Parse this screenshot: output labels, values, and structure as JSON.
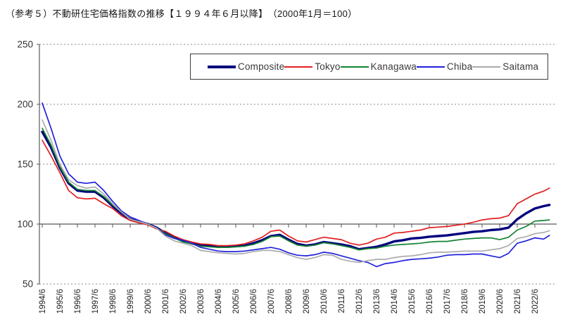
{
  "title": "（参考５）不動研住宅価格指数の推移【１９９４年６月以降】　（2000年1月＝100）",
  "chart_data": {
    "type": "line",
    "title": "不動研住宅価格指数の推移（1994年6月以降、2000年1月＝100）",
    "xlabel": "",
    "ylabel": "",
    "ylim": [
      50,
      250
    ],
    "y_ticks": [
      50,
      100,
      150,
      200,
      250
    ],
    "baseline_value": 100,
    "grid": "horizontal-dashed",
    "legend_position": "top-inside",
    "x_tick_labels": [
      "1994/6",
      "1995/6",
      "1996/6",
      "1997/6",
      "1998/6",
      "1999/6",
      "2000/6",
      "2001/6",
      "2002/6",
      "2003/6",
      "2004/6",
      "2005/6",
      "2006/6",
      "2007/6",
      "2008/6",
      "2009/6",
      "2010/6",
      "2011/6",
      "2012/6",
      "2013/6",
      "2014/6",
      "2015/6",
      "2016/6",
      "2017/6",
      "2018/6",
      "2019/6",
      "2020/6",
      "2021/6",
      "2022/6"
    ],
    "x": [
      1994.5,
      1995,
      1995.5,
      1996,
      1996.5,
      1997,
      1997.5,
      1998,
      1998.5,
      1999,
      1999.5,
      2000,
      2000.5,
      2001,
      2001.5,
      2002,
      2002.5,
      2003,
      2003.5,
      2004,
      2004.5,
      2005,
      2005.5,
      2006,
      2006.5,
      2007,
      2007.5,
      2008,
      2008.5,
      2009,
      2009.5,
      2010,
      2010.5,
      2011,
      2011.5,
      2012,
      2012.5,
      2013,
      2013.5,
      2014,
      2014.5,
      2015,
      2015.5,
      2016,
      2016.5,
      2017,
      2017.5,
      2018,
      2018.5,
      2019,
      2019.5,
      2020,
      2020.5,
      2021,
      2021.5,
      2022,
      2022.5,
      2023,
      2023.33
    ],
    "series": [
      {
        "name": "Composite",
        "color": "#00007E",
        "width": 3.4,
        "values": [
          177,
          164,
          147,
          134,
          128,
          127,
          127,
          122,
          115,
          109,
          104,
          102,
          100,
          97,
          92.5,
          89,
          86,
          84,
          82.5,
          82,
          81,
          81,
          81.5,
          82,
          84,
          86.5,
          90,
          91,
          87,
          83.5,
          82,
          83,
          85,
          84,
          83,
          81.5,
          79,
          80,
          81,
          83,
          85.5,
          86.5,
          88,
          88.5,
          89.5,
          90,
          90.5,
          91.5,
          92.5,
          93.5,
          94,
          95,
          95.5,
          97,
          104,
          109,
          113,
          115,
          116
        ]
      },
      {
        "name": "Tokyo",
        "color": "#E02020",
        "width": 1.7,
        "values": [
          170,
          157,
          143,
          128,
          122,
          121,
          121.5,
          117,
          113,
          107,
          103,
          101,
          99.5,
          96,
          94,
          90,
          87,
          85,
          83.5,
          83,
          82,
          82,
          82.5,
          83.5,
          86,
          89,
          94,
          95,
          90,
          86,
          85,
          87,
          89,
          88,
          87,
          84,
          82.5,
          84,
          87.5,
          89,
          92.5,
          93,
          94,
          95,
          97,
          97.5,
          98,
          99,
          100,
          101.5,
          103.5,
          104.5,
          105,
          107,
          117,
          121,
          125,
          127.5,
          130
        ]
      },
      {
        "name": "Kanagawa",
        "color": "#148433",
        "width": 1.7,
        "values": [
          180,
          166,
          148,
          135,
          129,
          128,
          128,
          123,
          116,
          110,
          104,
          102,
          100,
          97,
          92,
          88.5,
          85,
          83.5,
          81.5,
          81,
          80.5,
          80.5,
          81,
          81.5,
          83,
          85.5,
          89.5,
          90,
          86,
          82.5,
          81.5,
          82.5,
          84.5,
          83.5,
          82,
          80.5,
          78.5,
          79.5,
          80,
          81.5,
          82.5,
          83,
          83.5,
          84,
          85,
          85.5,
          85.5,
          86.5,
          87.5,
          88,
          88.5,
          88.5,
          87,
          89,
          95,
          98,
          102.5,
          103,
          103.5
        ]
      },
      {
        "name": "Chiba",
        "color": "#2222DD",
        "width": 1.7,
        "values": [
          201,
          180,
          157,
          142,
          135,
          134,
          135,
          128,
          119,
          111,
          106,
          103,
          100,
          97,
          91,
          88,
          86.5,
          84,
          80.5,
          79,
          77.5,
          77,
          77,
          77.5,
          78.5,
          79.5,
          80.5,
          79,
          76,
          74,
          73.5,
          74.5,
          76.5,
          75.5,
          73.5,
          71.5,
          69.5,
          68,
          64.5,
          67,
          68,
          69.5,
          70.5,
          71,
          71.5,
          72.5,
          74,
          74.5,
          74.5,
          75,
          75,
          73.5,
          72,
          75.5,
          84,
          86,
          88.5,
          87.5,
          90.5
        ]
      },
      {
        "name": "Saitama",
        "color": "#ACACAC",
        "width": 1.7,
        "values": [
          187,
          170,
          150,
          137,
          132,
          130,
          131,
          125,
          117,
          110,
          104,
          102,
          100,
          96.5,
          90,
          86,
          84,
          82,
          78,
          77,
          76,
          75.5,
          75,
          75.5,
          77,
          78,
          78,
          77,
          74.5,
          72,
          70.5,
          72,
          74.5,
          74,
          70.5,
          69,
          68,
          69.5,
          70.5,
          70.5,
          72,
          73,
          73.5,
          74.5,
          76,
          76.5,
          76.5,
          77,
          77.5,
          77.5,
          77.5,
          78.5,
          79.5,
          82,
          88,
          89.5,
          92,
          93,
          94.5
        ]
      }
    ]
  }
}
